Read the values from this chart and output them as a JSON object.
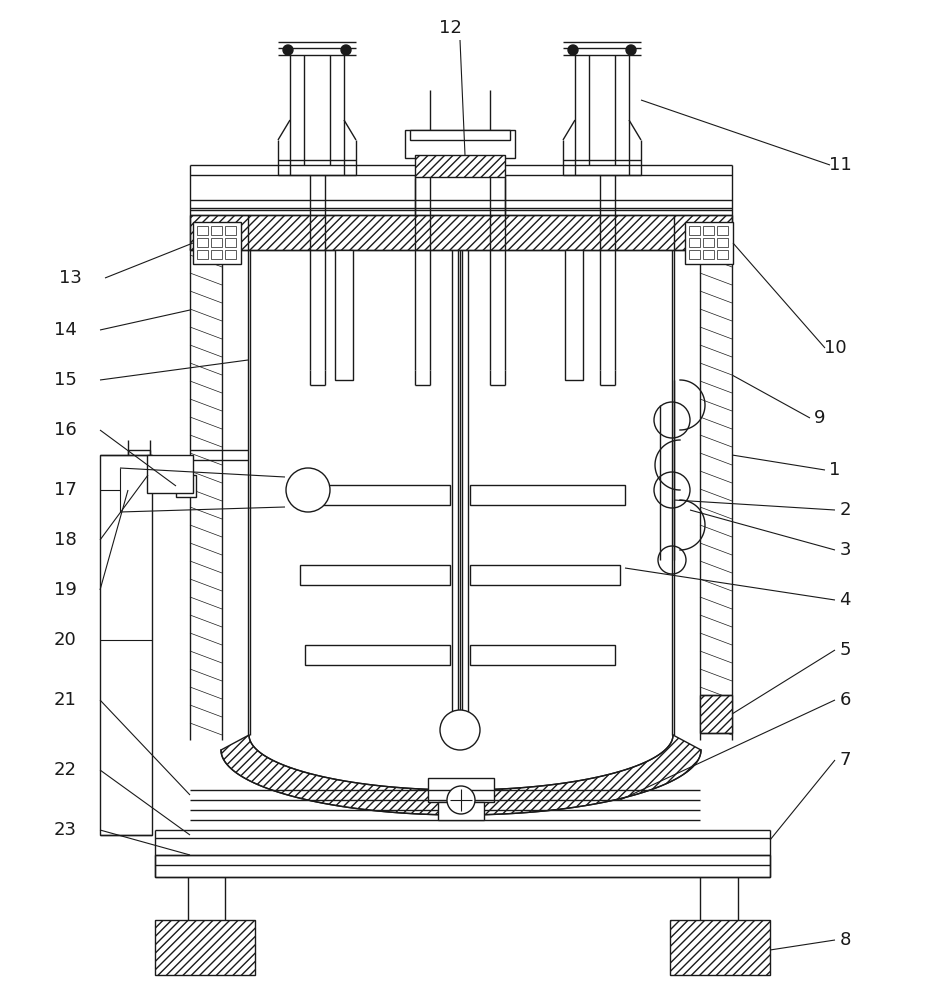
{
  "bg_color": "#ffffff",
  "line_color": "#1a1a1a",
  "lw": 1.0,
  "lw_thin": 0.6,
  "lw_thick": 1.5,
  "fig_width": 9.29,
  "fig_height": 10.0,
  "label_fs": 13
}
